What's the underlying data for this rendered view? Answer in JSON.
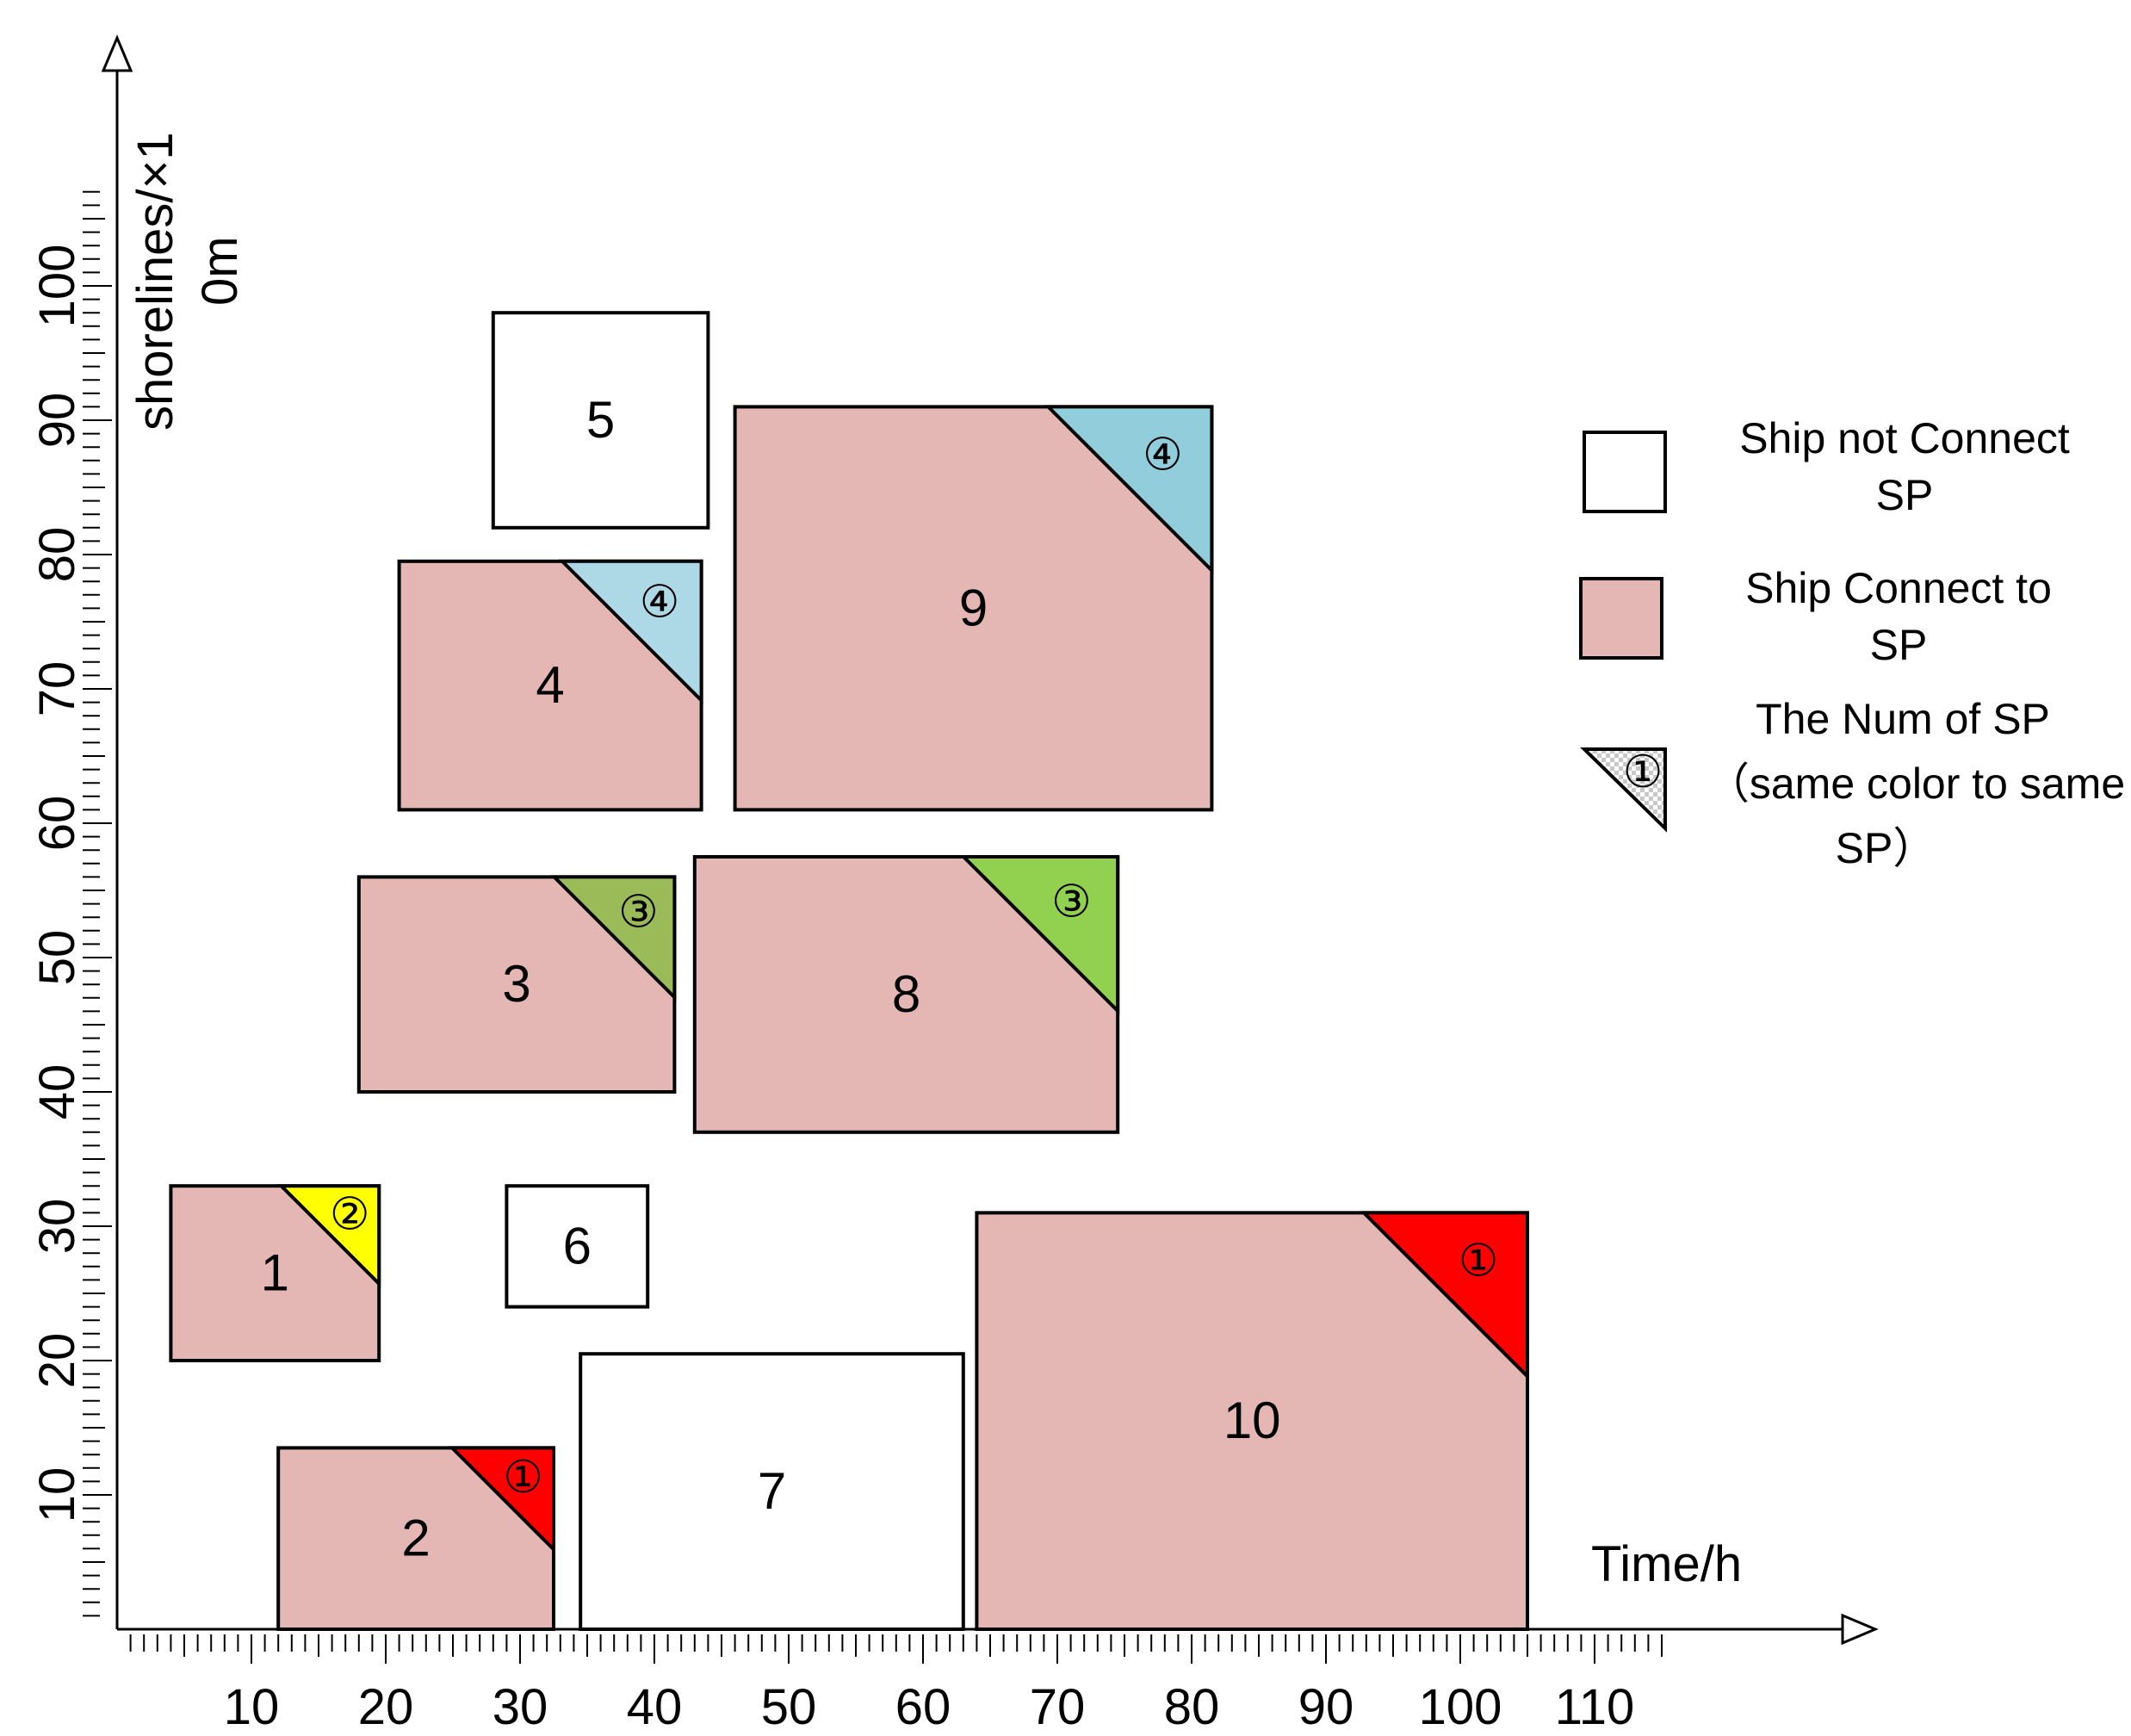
{
  "chart_data": {
    "type": "gantt",
    "x_label": "Time/h",
    "y_label_line1": "shorelines/×1",
    "y_label_line2": "0m",
    "x_tick_labels": [
      "10",
      "20",
      "30",
      "40",
      "50",
      "60",
      "70",
      "80",
      "90",
      "100",
      "110"
    ],
    "y_tick_labels": [
      "10",
      "20",
      "30",
      "40",
      "50",
      "60",
      "70",
      "80",
      "90",
      "100"
    ],
    "x_range": [
      0,
      115
    ],
    "y_range": [
      0,
      107
    ],
    "colors": {
      "connected": "#e4b7b5",
      "not_connected": "#ffffff",
      "sp1": "#ff0000",
      "sp2": "#ffff00",
      "sp3": "#9bbb59",
      "sp3_alt": "#92d050",
      "sp4": "#add8e6",
      "sp4_alt": "#92cddc"
    },
    "ships": [
      {
        "label": "1",
        "x0": 4,
        "x1": 19.5,
        "y0": 20,
        "y1": 33,
        "connected": true,
        "sp": "②",
        "sp_color": "#ffff00"
      },
      {
        "label": "2",
        "x0": 12,
        "x1": 32.5,
        "y0": 0,
        "y1": 13.5,
        "connected": true,
        "sp": "①",
        "sp_color": "#ff0000"
      },
      {
        "label": "3",
        "x0": 18,
        "x1": 41.5,
        "y0": 40,
        "y1": 56,
        "connected": true,
        "sp": "③",
        "sp_color": "#9bbb59"
      },
      {
        "label": "4",
        "x0": 21,
        "x1": 43.5,
        "y0": 61,
        "y1": 79.5,
        "connected": true,
        "sp": "④",
        "sp_color": "#add8e6"
      },
      {
        "label": "5",
        "x0": 28,
        "x1": 44,
        "y0": 82,
        "y1": 98,
        "connected": false
      },
      {
        "label": "6",
        "x0": 29,
        "x1": 39.5,
        "y0": 24,
        "y1": 33,
        "connected": false
      },
      {
        "label": "7",
        "x0": 34.5,
        "x1": 63,
        "y0": 0,
        "y1": 20.5,
        "connected": false
      },
      {
        "label": "8",
        "x0": 43,
        "x1": 74.5,
        "y0": 37,
        "y1": 57.5,
        "connected": true,
        "sp": "③",
        "sp_color": "#92d050"
      },
      {
        "label": "9",
        "x0": 46,
        "x1": 81.5,
        "y0": 61,
        "y1": 91,
        "connected": true,
        "sp": "④",
        "sp_color": "#92cddc"
      },
      {
        "label": "10",
        "x0": 64,
        "x1": 105,
        "y0": 0,
        "y1": 31,
        "connected": true,
        "sp": "①",
        "sp_color": "#ff0000"
      }
    ],
    "legend": [
      {
        "key": "not_connected",
        "text_lines": [
          "Ship not Connect",
          "SP"
        ]
      },
      {
        "key": "connected",
        "text_lines": [
          "Ship Connect to",
          "SP"
        ]
      },
      {
        "key": "sp",
        "symbol": "①",
        "text_lines": [
          "The Num of SP",
          "（same color to same",
          "SP）"
        ]
      }
    ]
  }
}
